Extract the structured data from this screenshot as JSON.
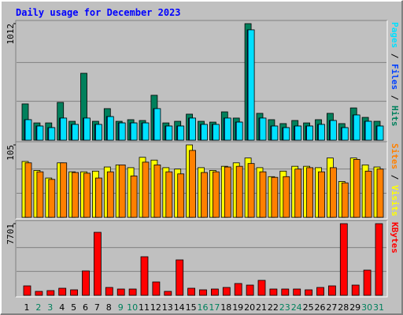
{
  "title": "Daily usage for December 2023",
  "chart_data": [
    {
      "type": "bar",
      "ylim": [
        0,
        1012
      ],
      "yticks": [
        1012
      ],
      "series": [
        {
          "name": "Hits",
          "color": "#00805C",
          "values": [
            315,
            150,
            150,
            328,
            164,
            581,
            164,
            274,
            164,
            178,
            171,
            390,
            150,
            164,
            226,
            164,
            157,
            246,
            192,
            1012,
            233,
            178,
            144,
            171,
            150,
            178,
            233,
            144,
            280,
            198,
            164
          ]
        },
        {
          "name": "Files",
          "color": "#0040FF",
          "values": [
            178,
            123,
            109,
            192,
            137,
            192,
            137,
            205,
            150,
            150,
            150,
            274,
            123,
            123,
            192,
            137,
            137,
            192,
            157,
            958,
            192,
            123,
            109,
            123,
            123,
            137,
            171,
            109,
            219,
            164,
            123
          ]
        },
        {
          "name": "Pages",
          "color": "#00E0FF",
          "values": [
            178,
            123,
            109,
            192,
            137,
            192,
            137,
            205,
            150,
            150,
            150,
            274,
            123,
            123,
            192,
            137,
            137,
            192,
            157,
            958,
            192,
            123,
            109,
            123,
            123,
            137,
            171,
            109,
            219,
            164,
            123
          ]
        }
      ]
    },
    {
      "type": "bar",
      "ylim": [
        0,
        105
      ],
      "yticks": [
        105
      ],
      "series": [
        {
          "name": "Visits",
          "color": "#FFFF00",
          "values": [
            81,
            68,
            57,
            79,
            66,
            66,
            67,
            73,
            76,
            72,
            87,
            83,
            72,
            70,
            105,
            72,
            68,
            74,
            79,
            86,
            72,
            59,
            67,
            74,
            74,
            72,
            86,
            52,
            86,
            76,
            73
          ]
        },
        {
          "name": "Sites",
          "color": "#FF8000",
          "values": [
            79,
            66,
            55,
            79,
            65,
            64,
            57,
            66,
            76,
            60,
            80,
            76,
            66,
            63,
            97,
            65,
            66,
            73,
            74,
            78,
            66,
            58,
            59,
            70,
            72,
            66,
            72,
            50,
            84,
            67,
            70
          ]
        }
      ]
    },
    {
      "type": "bar",
      "ylim": [
        0,
        7701
      ],
      "yticks": [
        7701
      ],
      "categories": [
        "1",
        "2",
        "3",
        "4",
        "5",
        "6",
        "7",
        "8",
        "9",
        "10",
        "11",
        "12",
        "13",
        "14",
        "15",
        "16",
        "17",
        "18",
        "19",
        "20",
        "21",
        "22",
        "23",
        "24",
        "25",
        "26",
        "27",
        "28",
        "29",
        "30",
        "31"
      ],
      "category_colors": [
        "#000000",
        "#00805C",
        "#00805C",
        "#000000",
        "#000000",
        "#000000",
        "#000000",
        "#000000",
        "#00805C",
        "#00805C",
        "#000000",
        "#000000",
        "#000000",
        "#000000",
        "#000000",
        "#00805C",
        "#00805C",
        "#000000",
        "#000000",
        "#000000",
        "#000000",
        "#000000",
        "#00805C",
        "#00805C",
        "#000000",
        "#000000",
        "#000000",
        "#000000",
        "#000000",
        "#00805C",
        "#00805C"
      ],
      "series": [
        {
          "name": "KBytes",
          "color": "#FF0000",
          "values": [
            1015,
            423,
            508,
            761,
            592,
            2623,
            6770,
            846,
            677,
            677,
            4146,
            1438,
            423,
            3808,
            761,
            592,
            677,
            846,
            1269,
            1100,
            1608,
            677,
            677,
            677,
            592,
            846,
            1015,
            7701,
            1100,
            2708,
            7701
          ]
        }
      ]
    }
  ]
}
